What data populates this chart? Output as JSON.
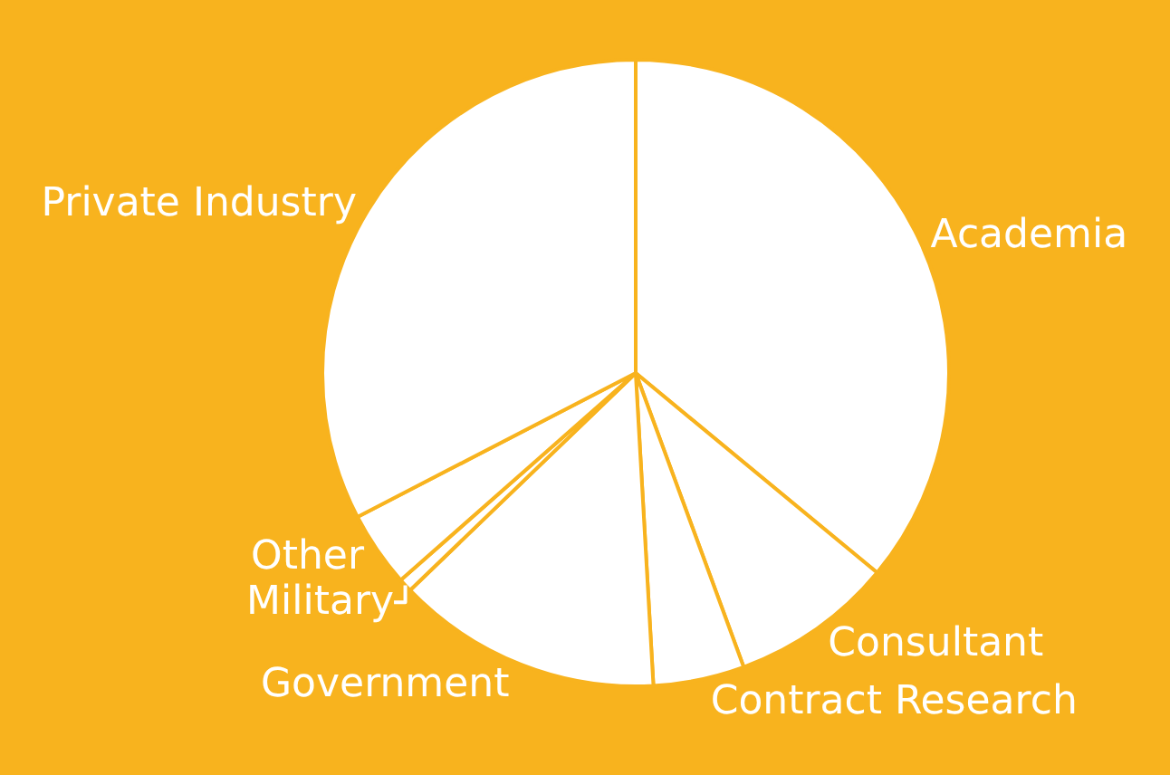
{
  "chart_data": {
    "type": "pie",
    "categories": [
      "Academia",
      "Consultant",
      "Contract Research",
      "Government",
      "Military",
      "Other",
      "Private Industry"
    ],
    "values": [
      36,
      8.4,
      4.7,
      13.7,
      0.7,
      3.9,
      32.6
    ],
    "colors": [
      "#ffffff",
      "#ffffff",
      "#ffffff",
      "#ffffff",
      "#ffffff",
      "#ffffff",
      "#ffffff"
    ],
    "legend": false
  }
}
